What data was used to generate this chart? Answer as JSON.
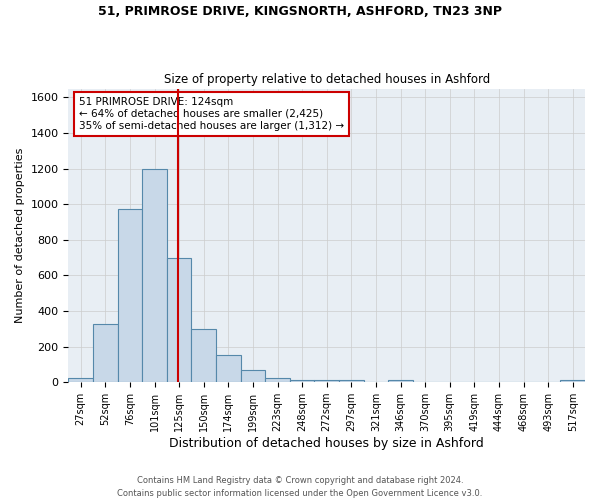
{
  "title1": "51, PRIMROSE DRIVE, KINGSNORTH, ASHFORD, TN23 3NP",
  "title2": "Size of property relative to detached houses in Ashford",
  "xlabel": "Distribution of detached houses by size in Ashford",
  "ylabel": "Number of detached properties",
  "footer": "Contains HM Land Registry data © Crown copyright and database right 2024.\nContains public sector information licensed under the Open Government Licence v3.0.",
  "bin_labels": [
    "27sqm",
    "52sqm",
    "76sqm",
    "101sqm",
    "125sqm",
    "150sqm",
    "174sqm",
    "199sqm",
    "223sqm",
    "248sqm",
    "272sqm",
    "297sqm",
    "321sqm",
    "346sqm",
    "370sqm",
    "395sqm",
    "419sqm",
    "444sqm",
    "468sqm",
    "493sqm",
    "517sqm"
  ],
  "bar_values": [
    25,
    325,
    975,
    1200,
    700,
    300,
    155,
    70,
    25,
    15,
    10,
    10,
    0,
    10,
    0,
    0,
    0,
    0,
    0,
    0,
    10
  ],
  "bar_color": "#c8d8e8",
  "bar_edgecolor": "#5588aa",
  "ylim": [
    0,
    1650
  ],
  "yticks": [
    0,
    200,
    400,
    600,
    800,
    1000,
    1200,
    1400,
    1600
  ],
  "annotation_line1": "51 PRIMROSE DRIVE: 124sqm",
  "annotation_line2": "← 64% of detached houses are smaller (2,425)",
  "annotation_line3": "35% of semi-detached houses are larger (1,312) →",
  "annotation_color": "#cc0000",
  "grid_color": "#cccccc",
  "bg_color": "#e8eef4"
}
